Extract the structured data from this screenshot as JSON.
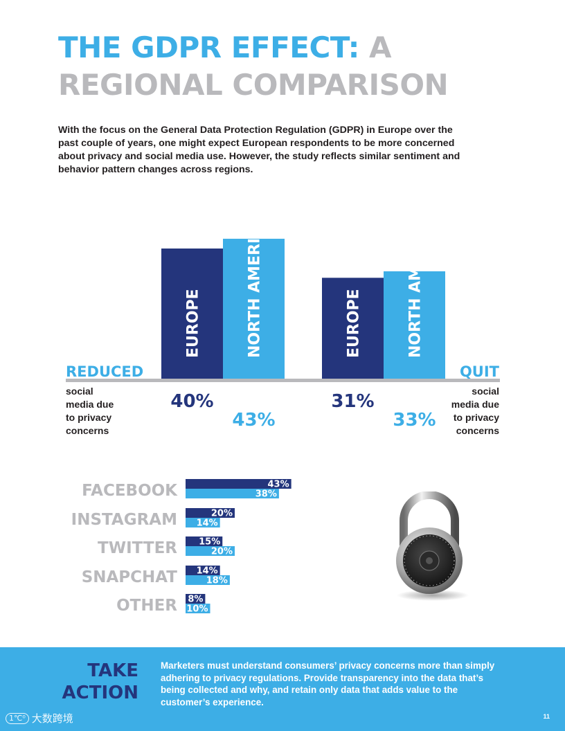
{
  "title": {
    "part1": "THE GDPR EFFECT:",
    "part2": " A REGIONAL COMPARISON"
  },
  "intro": "With the focus on the General Data Protection Regulation (GDPR) in Europe over the past couple of years, one might expect European respondents to be more concerned about privacy and social media use. However, the study reflects similar sentiment and behavior pattern changes across regions.",
  "colors": {
    "navy": "#24357c",
    "blue": "#3daee6",
    "gray": "#b9b9bc"
  },
  "chart_data": [
    {
      "type": "bar",
      "categories": [
        "REDUCED",
        "QUIT"
      ],
      "category_descriptions": [
        [
          "social",
          "media due",
          "to privacy",
          "concerns"
        ],
        [
          "social",
          "media due",
          "to privacy",
          "concerns"
        ]
      ],
      "series": [
        {
          "name": "EUROPE",
          "values": [
            40,
            31
          ],
          "labels": [
            "40%",
            "31%"
          ]
        },
        {
          "name": "NORTH AMERICA",
          "values": [
            43,
            33
          ],
          "labels": [
            "43%",
            "33%"
          ]
        }
      ],
      "ylim": [
        0,
        50
      ]
    },
    {
      "type": "bar",
      "orientation": "horizontal",
      "categories": [
        "FACEBOOK",
        "INSTAGRAM",
        "TWITTER",
        "SNAPCHAT",
        "OTHER"
      ],
      "series": [
        {
          "values": [
            43,
            20,
            15,
            14,
            8
          ],
          "labels": [
            "43%",
            "20%",
            "15%",
            "14%",
            "8%"
          ]
        },
        {
          "values": [
            38,
            14,
            20,
            18,
            10
          ],
          "labels": [
            "38%",
            "14%",
            "20%",
            "18%",
            "10%"
          ]
        }
      ],
      "xlim": [
        0,
        45
      ]
    }
  ],
  "lock_icon": "combination-padlock-icon",
  "footer": {
    "heading_line1": "TAKE",
    "heading_line2": "ACTION",
    "text": "Marketers must understand consumers’ privacy concerns more than simply adhering to privacy regulations. Provide transparency into the data that’s being collected and why, and retain only data that adds value to the customer’s experience.",
    "page_number": "11",
    "watermark_logo": "1℃⁰",
    "watermark_text": "大数跨境"
  }
}
